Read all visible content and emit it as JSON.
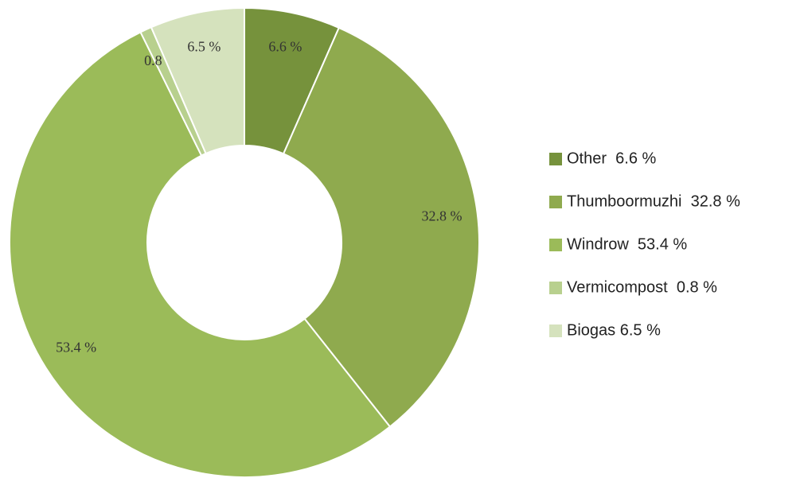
{
  "chart_data": {
    "type": "donut",
    "categories": [
      "Other  6.6 %",
      "Thumboormuzhi  32.8 %",
      "Windrow  53.4 %",
      "Vermicompost  0.8 %",
      "Biogas 6.5 %"
    ],
    "values": [
      6.6,
      32.8,
      53.4,
      0.8,
      6.5
    ],
    "value_labels": [
      "6.6 %",
      "32.8 %",
      "53.4 %",
      "0.8 %",
      "6.5 %"
    ],
    "colors": [
      "#76923c",
      "#8faa4e",
      "#9bbb59",
      "#b8d08e",
      "#d5e2bd"
    ],
    "legend": "right"
  }
}
